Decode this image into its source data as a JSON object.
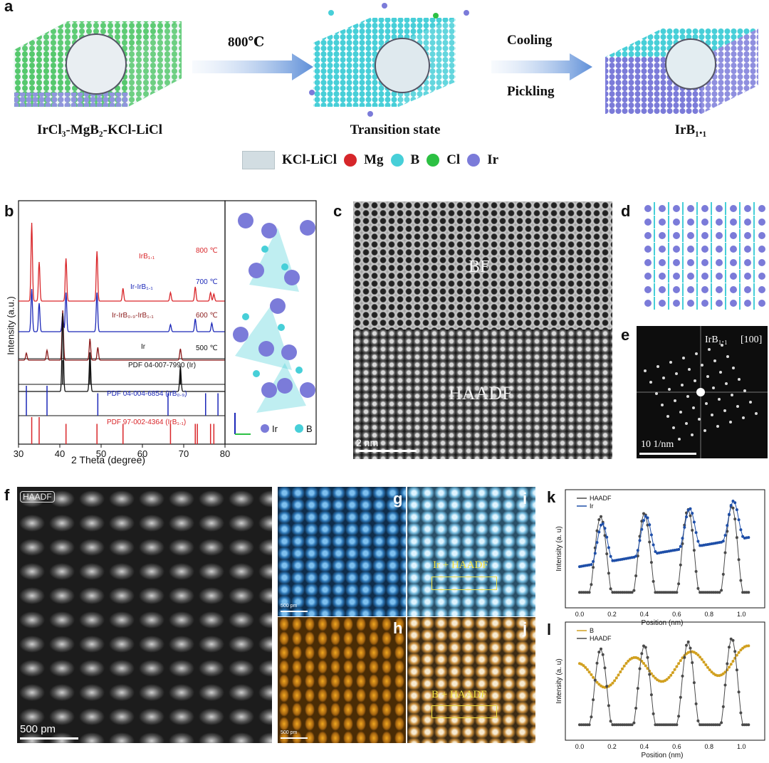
{
  "panel_a": {
    "letter": "a",
    "stage1": "IrCl₃-MgB₂-KCl-LiCl",
    "stage2": "Transition state",
    "stage3": "IrB₁.₁",
    "arrow1": "800℃",
    "arrow2_top": "Cooling",
    "arrow2_bottom": "Pickling",
    "legend": [
      {
        "label": "KCl-LiCl",
        "color": "#c9d6dc",
        "shape": "box-icon"
      },
      {
        "label": "Mg",
        "color": "#d6262a",
        "shape": "sphere-icon"
      },
      {
        "label": "B",
        "color": "#47cfd8",
        "shape": "sphere-icon"
      },
      {
        "label": "Cl",
        "color": "#2cc043",
        "shape": "sphere-icon"
      },
      {
        "label": "Ir",
        "color": "#7b7bd9",
        "shape": "sphere-icon"
      }
    ]
  },
  "panel_b": {
    "letter": "b",
    "xlabel": "2 Theta (degree)",
    "ylabel": "Intensity (a.u.)",
    "xticks": [
      "30",
      "40",
      "50",
      "60",
      "70",
      "80"
    ],
    "traces": [
      {
        "name": "IrB₁.₁",
        "temp": "800 ℃",
        "color": "#d9262a"
      },
      {
        "name": "Ir-IrB₁.₁",
        "temp": "700 ℃",
        "color": "#1b27b8"
      },
      {
        "name": "Ir-IrB₀.₉-IrB₁.₁",
        "temp": "600 ℃",
        "color": "#8b1a1a"
      },
      {
        "name": "Ir",
        "temp": "500 ℃",
        "color": "#111111"
      }
    ],
    "references": [
      {
        "label": "PDF 04-007-7990 (Ir)",
        "color": "#111111",
        "lines": [
          40.7,
          47.3,
          69.2
        ]
      },
      {
        "label": "PDF 04-004-6854 (IrB₀.₉)",
        "color": "#1b27b8",
        "lines": [
          31.9,
          36.9,
          49.2,
          66.2,
          75.3,
          78.3
        ]
      },
      {
        "label": "PDF 97-002-4364 (IrB₁.₁)",
        "color": "#d9262a",
        "lines": [
          33.2,
          35.0,
          41.5,
          49.0,
          55.3,
          66.8,
          72.8,
          73.3,
          76.5,
          77.3
        ]
      }
    ],
    "structure_legend": [
      {
        "label": "Ir",
        "color": "#7b7bd9"
      },
      {
        "label": "B",
        "color": "#47cfd8"
      }
    ]
  },
  "panel_c": {
    "letter": "c",
    "top_label": "BF",
    "bottom_label": "HAADF",
    "scale": "2 nm"
  },
  "panel_d": {
    "letter": "d"
  },
  "panel_e": {
    "letter": "e",
    "label": "IrB₁.₁",
    "zone": "[100]",
    "scale": "10 1/nm"
  },
  "panel_f": {
    "letter": "f",
    "tag": "HAADF",
    "scale": "500 pm"
  },
  "panel_g": {
    "letter": "g",
    "scale": "500 pm"
  },
  "panel_h": {
    "letter": "h",
    "scale": "500 pm"
  },
  "panel_i": {
    "letter": "i",
    "overlay": "Ir + HAADF"
  },
  "panel_j": {
    "letter": "j",
    "overlay": "B + HAADF"
  },
  "panel_k": {
    "letter": "k",
    "xlabel": "Position (nm)",
    "ylabel": "Intensity (a. u)",
    "xticks": [
      "0.0",
      "0.2",
      "0.4",
      "0.6",
      "0.8",
      "1.0"
    ],
    "series": [
      {
        "name": "HAADF",
        "color": "#4a4a4a"
      },
      {
        "name": "Ir",
        "color": "#1f4fa8"
      }
    ]
  },
  "panel_l": {
    "letter": "l",
    "xlabel": "Position (nm)",
    "ylabel": "Intensity (a. u)",
    "xticks": [
      "0.0",
      "0.2",
      "0.4",
      "0.6",
      "0.8",
      "1.0"
    ],
    "series": [
      {
        "name": "B",
        "color": "#d1a020"
      },
      {
        "name": "HAADF",
        "color": "#4a4a4a"
      }
    ]
  }
}
